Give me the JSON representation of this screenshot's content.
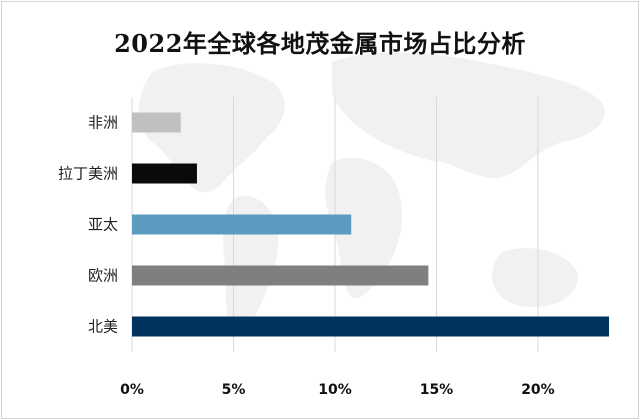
{
  "chart_data": {
    "type": "bar",
    "orientation": "horizontal",
    "title": "2022年全球各地茂金属市场占比分析",
    "categories": [
      "非洲",
      "拉丁美洲",
      "亚太",
      "欧洲",
      "北美"
    ],
    "values": [
      2.4,
      3.2,
      10.8,
      14.6,
      23.5
    ],
    "colors": [
      "#c0c0c0",
      "#0a0a0a",
      "#5b9bbf",
      "#7f7f7f",
      "#00325e"
    ],
    "xlim": [
      0,
      23.5
    ],
    "xticks": [
      0,
      5,
      10,
      15,
      20
    ],
    "tick_labels": [
      "0%",
      "5%",
      "10%",
      "15%",
      "20%"
    ],
    "grid": true,
    "gridline_color": "#d9d9d9"
  }
}
